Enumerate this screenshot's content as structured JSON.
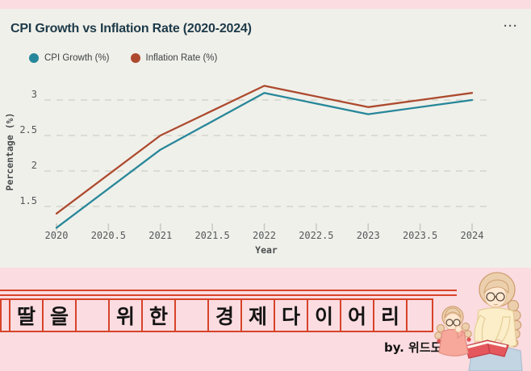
{
  "page": {
    "background_pink": "#fbdce0",
    "card_background": "#f0f0ea"
  },
  "icons": {
    "more_options_icon": "···"
  },
  "chart_data": {
    "type": "line",
    "title": "CPI Growth vs Inflation Rate (2020-2024)",
    "x": [
      2020,
      2021,
      2022,
      2023,
      2024
    ],
    "series": [
      {
        "name": "CPI Growth (%)",
        "color": "#27879a",
        "values": [
          1.2,
          2.3,
          3.1,
          2.8,
          3.0
        ]
      },
      {
        "name": "Inflation Rate (%)",
        "color": "#ad4a2e",
        "values": [
          1.4,
          2.5,
          3.2,
          2.9,
          3.1
        ]
      }
    ],
    "xlabel": "Year",
    "ylabel": "Percentage (%)",
    "x_ticks": [
      2020,
      2020.5,
      2021,
      2021.5,
      2022,
      2022.5,
      2023,
      2023.5,
      2024
    ],
    "y_ticks": [
      1.5,
      2,
      2.5,
      3
    ],
    "ylim": [
      1.2,
      3.3
    ],
    "grid": "horizontal-dashed",
    "grid_color": "#d7d8d0",
    "tick_color": "#c8c9c1",
    "legend_position": "top-left"
  },
  "banner": {
    "cells": [
      "",
      "딸",
      "을",
      "",
      "위",
      "한",
      "",
      "경",
      "제",
      "다",
      "이",
      "어",
      "리",
      ""
    ],
    "caption_text": "딸을 위한 경제다이어리",
    "byline": "by. 위드도터",
    "line_color": "#d7432a"
  }
}
